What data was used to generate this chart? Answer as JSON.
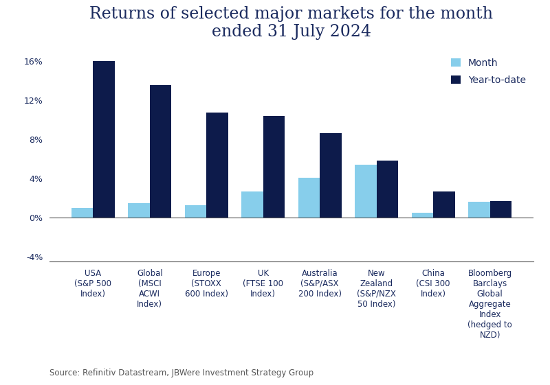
{
  "title_line1": "Returns of selected major markets for the month",
  "title_line2": "ended 31 July 2024",
  "categories": [
    "USA\n(S&P 500\nIndex)",
    "Global\n(MSCI\nACWI\nIndex)",
    "Europe\n(STOXX\n600 Index)",
    "UK\n(FTSE 100\nIndex)",
    "Australia\n(S&P/ASX\n200 Index)",
    "New\nZealand\n(S&P/NZX\n50 Index)",
    "China\n(CSI 300\nIndex)",
    "Bloomberg\nBarclays\nGlobal\nAggregate\nIndex\n(hedged to\nNZD)"
  ],
  "month_values": [
    1.0,
    1.5,
    1.3,
    2.7,
    4.1,
    5.4,
    0.5,
    1.6
  ],
  "ytd_values": [
    16.0,
    13.5,
    10.7,
    10.4,
    8.6,
    5.8,
    2.7,
    1.7
  ],
  "month_color": "#87CEEB",
  "ytd_color": "#0d1b4b",
  "background_color": "#ffffff",
  "ylim_min": -4.5,
  "ylim_max": 17.5,
  "yticks": [
    -4,
    0,
    4,
    8,
    12,
    16
  ],
  "legend_month": "Month",
  "legend_ytd": "Year-to-date",
  "source_text": "Source: Refinitiv Datastream, JBWere Investment Strategy Group",
  "bar_width": 0.38,
  "title_fontsize": 17,
  "tick_label_fontsize": 8.5,
  "ytick_label_fontsize": 9,
  "legend_fontsize": 10,
  "source_fontsize": 8.5,
  "axis_label_color": "#1a2a5e",
  "spine_color": "#555555"
}
